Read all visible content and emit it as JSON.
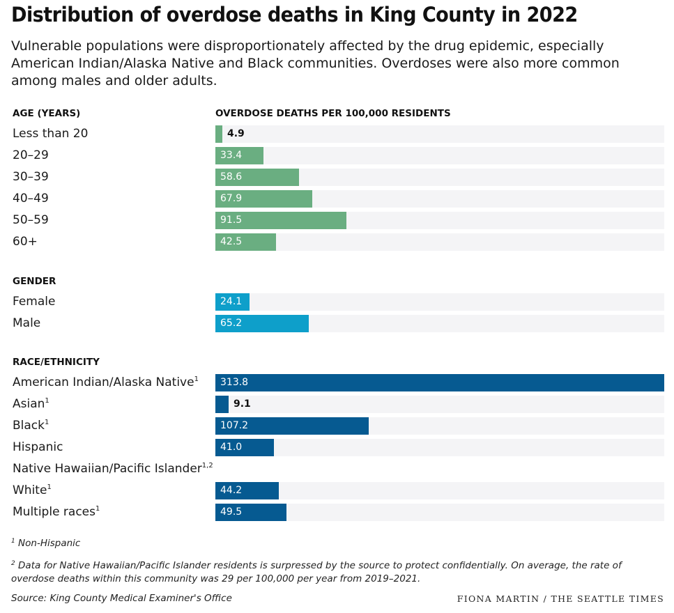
{
  "chart_data": {
    "type": "bar",
    "orientation": "horizontal",
    "title": "Distribution of overdose deaths in King County in 2022",
    "subtitle": "Vulnerable populations were disproportionately affected by the drug epidemic, especially American Indian/Alaska Native and Black communities. Overdoses were also more common among males and older adults.",
    "value_axis_label": "OVERDOSE DEATHS PER 100,000 RESIDENTS",
    "xlim": [
      0,
      313.8
    ],
    "grid": false,
    "legend": "none",
    "groups": [
      {
        "name": "AGE (YEARS)",
        "color": "#6aae81",
        "items": [
          {
            "label": "Less than 20",
            "sup": "",
            "value": 4.9,
            "value_label": "4.9"
          },
          {
            "label": "20–29",
            "sup": "",
            "value": 33.4,
            "value_label": "33.4"
          },
          {
            "label": "30–39",
            "sup": "",
            "value": 58.6,
            "value_label": "58.6"
          },
          {
            "label": "40–49",
            "sup": "",
            "value": 67.9,
            "value_label": "67.9"
          },
          {
            "label": "50–59",
            "sup": "",
            "value": 91.5,
            "value_label": "91.5"
          },
          {
            "label": "60+",
            "sup": "",
            "value": 42.5,
            "value_label": "42.5"
          }
        ]
      },
      {
        "name": "GENDER",
        "color": "#0e9fca",
        "items": [
          {
            "label": "Female",
            "sup": "",
            "value": 24.1,
            "value_label": "24.1"
          },
          {
            "label": "Male",
            "sup": "",
            "value": 65.2,
            "value_label": "65.2"
          }
        ]
      },
      {
        "name": "RACE/ETHNICITY",
        "color": "#065a91",
        "items": [
          {
            "label": "American Indian/Alaska Native",
            "sup": "1",
            "value": 313.8,
            "value_label": "313.8"
          },
          {
            "label": "Asian",
            "sup": "1",
            "value": 9.1,
            "value_label": "9.1"
          },
          {
            "label": "Black",
            "sup": "1",
            "value": 107.2,
            "value_label": "107.2"
          },
          {
            "label": "Hispanic",
            "sup": "",
            "value": 41.0,
            "value_label": "41.0"
          },
          {
            "label": "Native Hawaiian/Pacific Islander",
            "sup": "1,2",
            "value": null,
            "value_label": ""
          },
          {
            "label": "White",
            "sup": "1",
            "value": 44.2,
            "value_label": "44.2"
          },
          {
            "label": "Multiple races",
            "sup": "1",
            "value": 49.5,
            "value_label": "49.5"
          }
        ]
      }
    ]
  },
  "footnotes": [
    {
      "mark": "1",
      "text": "Non-Hispanic"
    },
    {
      "mark": "2",
      "text": "Data for Native Hawaiian/Pacific Islander residents is surpressed by the source to protect confidentially. On average, the rate of overdose deaths within this community was 29 per 100,000 per year from 2019–2021."
    }
  ],
  "source": "Source: King County Medical Examiner's Office",
  "credit": "FIONA MARTIN / THE SEATTLE TIMES"
}
